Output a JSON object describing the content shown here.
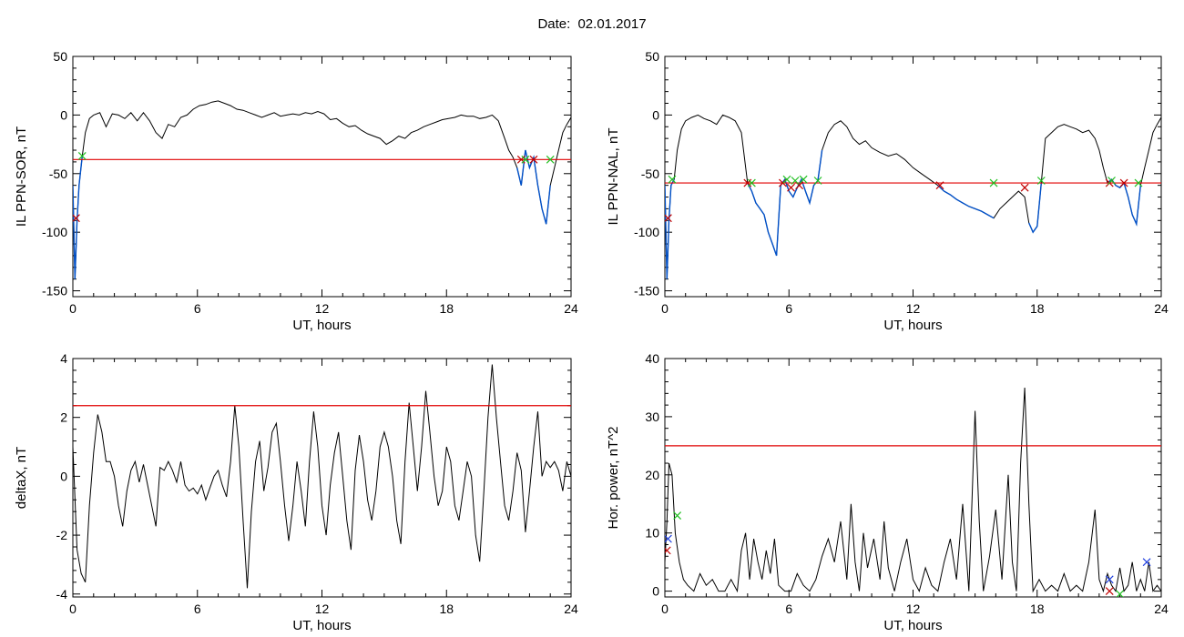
{
  "header": {
    "date_label": "Date:",
    "date_value": "02.01.2017"
  },
  "colors": {
    "trace": "#000000",
    "threshold": "#e00000",
    "substorm": "#0050c8",
    "onset_marker": "#c00000",
    "end_marker": "#20c020",
    "extra_marker": "#2040e0"
  },
  "chart_data": [
    {
      "type": "line",
      "title": "",
      "xlabel": "UT, hours",
      "ylabel": "IL PPN-SOR, nT",
      "xlim": [
        0,
        24
      ],
      "ylim": [
        -155,
        50
      ],
      "xticks": [
        0,
        6,
        12,
        18,
        24
      ],
      "yticks": [
        -150,
        -100,
        -50,
        0,
        50
      ],
      "threshold": -38,
      "series": [
        {
          "x": [
            0,
            0.1,
            0.2,
            0.3,
            0.45,
            0.6,
            0.8,
            1.0,
            1.3,
            1.6,
            1.9,
            2.2,
            2.5,
            2.8,
            3.1,
            3.4,
            3.7,
            4.0,
            4.3,
            4.6,
            4.9,
            5.2,
            5.5,
            5.8,
            6.1,
            6.4,
            6.7,
            7.0,
            7.3,
            7.6,
            7.9,
            8.2,
            8.5,
            8.8,
            9.1,
            9.4,
            9.7,
            10.0,
            10.3,
            10.6,
            10.9,
            11.2,
            11.5,
            11.8,
            12.1,
            12.4,
            12.7,
            13.0,
            13.3,
            13.6,
            13.9,
            14.2,
            14.5,
            14.8,
            15.1,
            15.4,
            15.7,
            16.0,
            16.3,
            16.6,
            16.9,
            17.2,
            17.5,
            17.8,
            18.1,
            18.4,
            18.7,
            19.0,
            19.3,
            19.6,
            19.9,
            20.2,
            20.5,
            20.8,
            21.0,
            21.2,
            21.4,
            21.6,
            21.8,
            22.0,
            22.2,
            22.4,
            22.6,
            22.8,
            23.0,
            23.2,
            23.4,
            23.6,
            23.8,
            24.0
          ],
          "y": [
            -60,
            -140,
            -90,
            -60,
            -35,
            -15,
            -3,
            0,
            2,
            -10,
            1,
            0,
            -3,
            2,
            -5,
            2,
            -5,
            -15,
            -20,
            -8,
            -10,
            -2,
            0,
            5,
            8,
            9,
            11,
            12,
            10,
            8,
            5,
            4,
            2,
            0,
            -2,
            0,
            2,
            -1,
            0,
            1,
            0,
            2,
            1,
            3,
            1,
            -4,
            -3,
            -7,
            -10,
            -9,
            -13,
            -16,
            -18,
            -20,
            -25,
            -22,
            -18,
            -20,
            -15,
            -13,
            -10,
            -8,
            -6,
            -4,
            -3,
            -2,
            0,
            -1,
            -1,
            -3,
            -2,
            0,
            -5,
            -20,
            -30,
            -36,
            -45,
            -60,
            -30,
            -45,
            -36,
            -60,
            -80,
            -93,
            -60,
            -45,
            -30,
            -15,
            -8,
            -2
          ]
        }
      ],
      "substorm_segments": [
        [
          0,
          0.45
        ],
        [
          21.4,
          23.0
        ]
      ],
      "onset_markers": [
        {
          "x": 0.15,
          "y": -88
        },
        {
          "x": 21.6,
          "y": -38
        },
        {
          "x": 22.2,
          "y": -38
        }
      ],
      "end_markers": [
        {
          "x": 0.45,
          "y": -35
        },
        {
          "x": 21.8,
          "y": -38
        },
        {
          "x": 23.0,
          "y": -38
        }
      ]
    },
    {
      "type": "line",
      "title": "",
      "xlabel": "UT, hours",
      "ylabel": "IL PPN-NAL, nT",
      "xlim": [
        0,
        24
      ],
      "ylim": [
        -155,
        50
      ],
      "xticks": [
        0,
        6,
        12,
        18,
        24
      ],
      "yticks": [
        -150,
        -100,
        -50,
        0,
        50
      ],
      "threshold": -58,
      "series": [
        {
          "x": [
            0,
            0.1,
            0.2,
            0.3,
            0.45,
            0.6,
            0.8,
            1.0,
            1.3,
            1.6,
            1.9,
            2.2,
            2.5,
            2.8,
            3.1,
            3.4,
            3.7,
            4.0,
            4.2,
            4.4,
            4.6,
            4.8,
            5.0,
            5.2,
            5.4,
            5.6,
            5.8,
            6.0,
            6.2,
            6.4,
            6.6,
            6.8,
            7.0,
            7.2,
            7.4,
            7.6,
            7.9,
            8.2,
            8.5,
            8.8,
            9.1,
            9.4,
            9.7,
            10.0,
            10.4,
            10.8,
            11.2,
            11.6,
            12.0,
            12.4,
            12.8,
            13.2,
            13.5,
            13.8,
            14.1,
            14.4,
            14.7,
            15.0,
            15.3,
            15.6,
            15.9,
            16.2,
            16.5,
            16.8,
            17.1,
            17.4,
            17.6,
            17.8,
            18.0,
            18.2,
            18.4,
            18.7,
            19.0,
            19.3,
            19.6,
            19.9,
            20.2,
            20.5,
            20.8,
            21.0,
            21.2,
            21.4,
            21.6,
            21.8,
            22.0,
            22.2,
            22.4,
            22.6,
            22.8,
            23.0,
            23.2,
            23.4,
            23.6,
            23.8,
            24.0
          ],
          "y": [
            -60,
            -140,
            -90,
            -60,
            -55,
            -30,
            -12,
            -5,
            -2,
            0,
            -3,
            -5,
            -8,
            0,
            -2,
            -5,
            -15,
            -58,
            -65,
            -75,
            -80,
            -85,
            -100,
            -110,
            -120,
            -60,
            -55,
            -65,
            -70,
            -62,
            -55,
            -65,
            -75,
            -60,
            -56,
            -30,
            -15,
            -8,
            -5,
            -10,
            -20,
            -25,
            -22,
            -28,
            -32,
            -35,
            -33,
            -38,
            -45,
            -50,
            -55,
            -60,
            -65,
            -68,
            -72,
            -75,
            -78,
            -80,
            -82,
            -85,
            -88,
            -80,
            -75,
            -70,
            -65,
            -70,
            -92,
            -100,
            -95,
            -58,
            -20,
            -15,
            -10,
            -8,
            -10,
            -12,
            -15,
            -13,
            -20,
            -30,
            -45,
            -58,
            -55,
            -60,
            -62,
            -58,
            -70,
            -85,
            -93,
            -60,
            -45,
            -30,
            -15,
            -8,
            -2
          ]
        }
      ],
      "substorm_segments": [
        [
          0,
          0.45
        ],
        [
          4.0,
          7.6
        ],
        [
          13.2,
          15.9
        ],
        [
          17.5,
          18.3
        ],
        [
          21.4,
          23.0
        ]
      ],
      "onset_markers": [
        {
          "x": 0.15,
          "y": -88
        },
        {
          "x": 4.0,
          "y": -58
        },
        {
          "x": 5.7,
          "y": -58
        },
        {
          "x": 6.1,
          "y": -62
        },
        {
          "x": 6.5,
          "y": -60
        },
        {
          "x": 13.3,
          "y": -60
        },
        {
          "x": 17.4,
          "y": -62
        },
        {
          "x": 21.5,
          "y": -58
        },
        {
          "x": 22.2,
          "y": -58
        }
      ],
      "end_markers": [
        {
          "x": 0.35,
          "y": -55
        },
        {
          "x": 4.2,
          "y": -58
        },
        {
          "x": 5.9,
          "y": -55
        },
        {
          "x": 6.3,
          "y": -56
        },
        {
          "x": 6.7,
          "y": -55
        },
        {
          "x": 7.4,
          "y": -56
        },
        {
          "x": 15.9,
          "y": -58
        },
        {
          "x": 18.2,
          "y": -56
        },
        {
          "x": 21.6,
          "y": -56
        },
        {
          "x": 22.9,
          "y": -58
        }
      ]
    },
    {
      "type": "line",
      "title": "",
      "xlabel": "UT, hours",
      "ylabel": "deltaX, nT",
      "xlim": [
        0,
        24
      ],
      "ylim": [
        -4.1,
        4
      ],
      "xticks": [
        0,
        6,
        12,
        18,
        24
      ],
      "yticks": [
        -4,
        -2,
        0,
        2,
        4
      ],
      "threshold": 2.4,
      "series": [
        {
          "x": [
            0,
            0.2,
            0.4,
            0.6,
            0.8,
            1.0,
            1.2,
            1.4,
            1.6,
            1.8,
            2.0,
            2.2,
            2.4,
            2.6,
            2.8,
            3.0,
            3.2,
            3.4,
            3.6,
            3.8,
            4.0,
            4.2,
            4.4,
            4.6,
            4.8,
            5.0,
            5.2,
            5.4,
            5.6,
            5.8,
            6.0,
            6.2,
            6.4,
            6.6,
            6.8,
            7.0,
            7.2,
            7.4,
            7.6,
            7.8,
            8.0,
            8.2,
            8.4,
            8.6,
            8.8,
            9.0,
            9.2,
            9.4,
            9.6,
            9.8,
            10.0,
            10.2,
            10.4,
            10.6,
            10.8,
            11.0,
            11.2,
            11.4,
            11.6,
            11.8,
            12.0,
            12.2,
            12.4,
            12.6,
            12.8,
            13.0,
            13.2,
            13.4,
            13.6,
            13.8,
            14.0,
            14.2,
            14.4,
            14.6,
            14.8,
            15.0,
            15.2,
            15.4,
            15.6,
            15.8,
            16.0,
            16.2,
            16.4,
            16.6,
            16.8,
            17.0,
            17.2,
            17.4,
            17.6,
            17.8,
            18.0,
            18.2,
            18.4,
            18.6,
            18.8,
            19.0,
            19.2,
            19.4,
            19.6,
            19.8,
            20.0,
            20.2,
            20.4,
            20.6,
            20.8,
            21.0,
            21.2,
            21.4,
            21.6,
            21.8,
            22.0,
            22.2,
            22.4,
            22.6,
            22.8,
            23.0,
            23.2,
            23.4,
            23.6,
            23.8,
            24.0
          ],
          "y": [
            1.0,
            -2.5,
            -3.3,
            -3.6,
            -1.0,
            0.8,
            2.1,
            1.5,
            0.5,
            0.5,
            0.0,
            -1.0,
            -1.7,
            -0.5,
            0.2,
            0.5,
            -0.2,
            0.4,
            -0.3,
            -1.0,
            -1.7,
            0.3,
            0.2,
            0.5,
            0.2,
            -0.2,
            0.5,
            -0.3,
            -0.5,
            -0.4,
            -0.6,
            -0.3,
            -0.8,
            -0.4,
            0.0,
            0.2,
            -0.3,
            -0.7,
            0.5,
            2.4,
            1.0,
            -1.5,
            -3.8,
            -1.2,
            0.5,
            1.2,
            -0.5,
            0.3,
            1.5,
            1.8,
            0.5,
            -1.0,
            -2.2,
            -1.0,
            0.5,
            -0.5,
            -1.7,
            0.5,
            2.2,
            1.0,
            -1.0,
            -2.0,
            -0.3,
            0.8,
            1.5,
            0.0,
            -1.5,
            -2.5,
            0.2,
            1.4,
            0.5,
            -0.8,
            -1.5,
            -0.5,
            1.0,
            1.5,
            1.0,
            0.0,
            -1.5,
            -2.3,
            0.5,
            2.5,
            1.0,
            -0.5,
            1.0,
            2.9,
            1.5,
            0.0,
            -1.0,
            -0.5,
            1.0,
            0.5,
            -1.0,
            -1.5,
            -0.5,
            0.5,
            0.0,
            -2.0,
            -2.9,
            -0.5,
            2.0,
            3.8,
            2.0,
            0.5,
            -1.0,
            -1.5,
            -0.5,
            0.8,
            0.2,
            -1.9,
            -0.5,
            1.0,
            2.2,
            0.0,
            0.5,
            0.3,
            0.5,
            0.2,
            -0.5,
            0.5,
            0.0
          ]
        }
      ],
      "substorm_segments": [],
      "onset_markers": [],
      "end_markers": []
    },
    {
      "type": "line",
      "title": "",
      "xlabel": "UT, hours",
      "ylabel": "Hor. power, nT^2",
      "xlim": [
        0,
        24
      ],
      "ylim": [
        -1,
        40
      ],
      "xticks": [
        0,
        6,
        12,
        18,
        24
      ],
      "yticks": [
        0,
        10,
        20,
        30,
        40
      ],
      "threshold": 25,
      "series": [
        {
          "x": [
            0,
            0.1,
            0.2,
            0.35,
            0.5,
            0.7,
            0.9,
            1.1,
            1.4,
            1.7,
            2.0,
            2.3,
            2.6,
            2.9,
            3.2,
            3.5,
            3.7,
            3.9,
            4.1,
            4.3,
            4.5,
            4.7,
            4.9,
            5.1,
            5.3,
            5.5,
            5.8,
            6.1,
            6.4,
            6.7,
            7.0,
            7.3,
            7.6,
            7.9,
            8.2,
            8.5,
            8.8,
            9.0,
            9.2,
            9.4,
            9.6,
            9.8,
            10.1,
            10.4,
            10.6,
            10.8,
            11.1,
            11.4,
            11.7,
            12.0,
            12.3,
            12.6,
            12.9,
            13.2,
            13.5,
            13.8,
            14.1,
            14.4,
            14.7,
            15.0,
            15.2,
            15.4,
            15.7,
            16.0,
            16.3,
            16.6,
            16.8,
            17.0,
            17.2,
            17.4,
            17.6,
            17.8,
            18.1,
            18.4,
            18.7,
            19.0,
            19.3,
            19.6,
            19.9,
            20.2,
            20.5,
            20.8,
            21.0,
            21.2,
            21.4,
            21.6,
            21.8,
            22.0,
            22.2,
            22.4,
            22.6,
            22.8,
            23.0,
            23.2,
            23.4,
            23.6,
            23.8,
            24.0
          ],
          "y": [
            5,
            12,
            22,
            20,
            10,
            5,
            2,
            1,
            0,
            3,
            1,
            2,
            0,
            0,
            2,
            0,
            7,
            10,
            2,
            9,
            5,
            2,
            7,
            3,
            9,
            1,
            0,
            0,
            3,
            1,
            0,
            2,
            6,
            9,
            5,
            12,
            2,
            15,
            5,
            0,
            10,
            4,
            9,
            2,
            12,
            4,
            0,
            5,
            9,
            2,
            0,
            4,
            1,
            0,
            5,
            9,
            2,
            15,
            0,
            31,
            12,
            0,
            6,
            14,
            2,
            20,
            5,
            0,
            22,
            35,
            15,
            0,
            2,
            0,
            1,
            0,
            3,
            0,
            1,
            0,
            5,
            14,
            2,
            0,
            3,
            1,
            0,
            4,
            0,
            1,
            5,
            0,
            2,
            0,
            5,
            0,
            1,
            0
          ]
        }
      ],
      "substorm_segments": [],
      "onset_markers": [
        {
          "x": 0.1,
          "y": 7
        },
        {
          "x": 21.5,
          "y": 0
        }
      ],
      "end_markers": [
        {
          "x": 0.6,
          "y": 13
        },
        {
          "x": 22.0,
          "y": -0.5
        }
      ],
      "extra_markers": [
        {
          "x": 0.15,
          "y": 9
        },
        {
          "x": 21.5,
          "y": 2
        },
        {
          "x": 23.3,
          "y": 5
        }
      ]
    }
  ]
}
